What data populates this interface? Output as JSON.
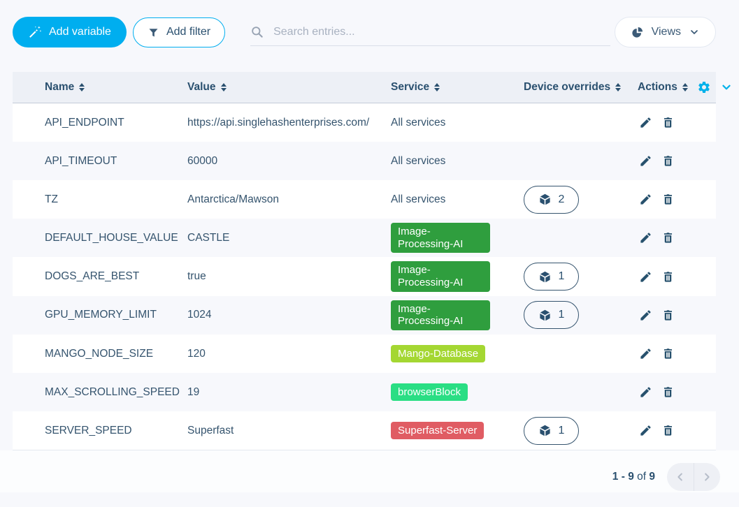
{
  "toolbar": {
    "add_variable_label": "Add variable",
    "add_filter_label": "Add filter",
    "search_placeholder": "Search entries...",
    "views_label": "Views"
  },
  "table": {
    "columns": [
      "Name",
      "Value",
      "Service",
      "Device overrides",
      "Actions"
    ],
    "rows": [
      {
        "name": "API_ENDPOINT",
        "value": "https://api.singlehashenterprises.com/",
        "service": {
          "label": "All services",
          "badge": false
        },
        "overrides": null
      },
      {
        "name": "API_TIMEOUT",
        "value": "60000",
        "service": {
          "label": "All services",
          "badge": false
        },
        "overrides": null
      },
      {
        "name": "TZ",
        "value": "Antarctica/Mawson",
        "service": {
          "label": "All services",
          "badge": false
        },
        "overrides": "2"
      },
      {
        "name": "DEFAULT_HOUSE_VALUE",
        "value": "CASTLE",
        "service": {
          "label": "Image-Processing-AI",
          "badge": true,
          "color": "#2f9e3e"
        },
        "overrides": null
      },
      {
        "name": "DOGS_ARE_BEST",
        "value": "true",
        "service": {
          "label": "Image-Processing-AI",
          "badge": true,
          "color": "#2f9e3e"
        },
        "overrides": "1"
      },
      {
        "name": "GPU_MEMORY_LIMIT",
        "value": "1024",
        "service": {
          "label": "Image-Processing-AI",
          "badge": true,
          "color": "#2f9e3e"
        },
        "overrides": "1"
      },
      {
        "name": "MANGO_NODE_SIZE",
        "value": "120",
        "service": {
          "label": "Mango-Database",
          "badge": true,
          "color": "#a4d732"
        },
        "overrides": null
      },
      {
        "name": "MAX_SCROLLING_SPEED",
        "value": "19",
        "service": {
          "label": "browserBlock",
          "badge": true,
          "color": "#2ade84"
        },
        "overrides": null
      },
      {
        "name": "SERVER_SPEED",
        "value": "Superfast",
        "service": {
          "label": "Superfast-Server",
          "badge": true,
          "color": "#e05c63"
        },
        "overrides": "1"
      }
    ]
  },
  "pagination": {
    "range": "1 - 9",
    "of_label": "of",
    "total": "9"
  },
  "colors": {
    "primary": "#00aeef",
    "text": "#2a506f",
    "header_bg": "#edf0f6",
    "row_alt_bg": "#f7f8fc"
  }
}
